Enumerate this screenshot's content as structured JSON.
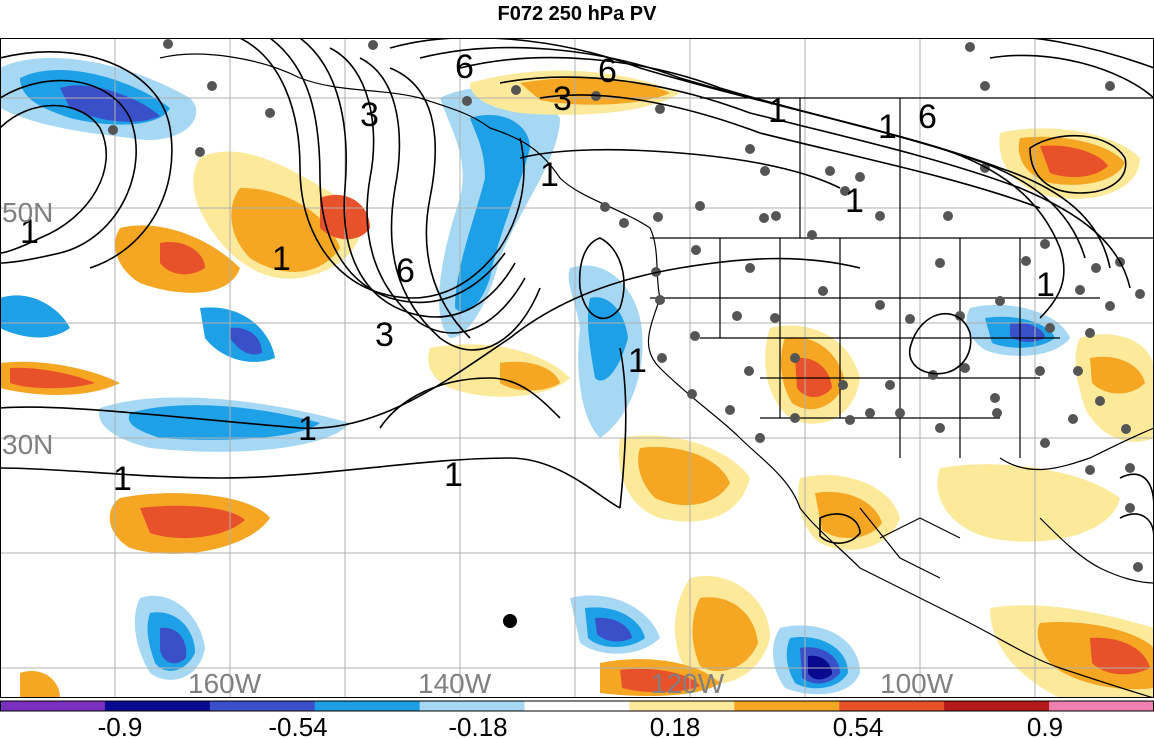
{
  "title": "F072 250 hPa PV",
  "map": {
    "lat_labels": [
      "50N",
      "30N"
    ],
    "lon_labels": [
      "160W",
      "140W",
      "120W",
      "100W"
    ],
    "contour_labels": [
      "3",
      "6",
      "6",
      "3",
      "1",
      "1",
      "6",
      "3",
      "6",
      "1",
      "1",
      "1",
      "1",
      "1",
      "1",
      "1",
      "1",
      "1"
    ],
    "colors": {
      "neg_0_9": "#7b2fbf",
      "neg_0_72": "#0a0a8f",
      "neg_0_54": "#3a50c8",
      "neg_0_36": "#1ea0e6",
      "neg_0_18": "#a6d8f4",
      "pos_0_18": "#fde99a",
      "pos_0_36": "#f5a623",
      "pos_0_54": "#e8522a",
      "pos_0_72": "#b31b1b",
      "pos_0_9": "#f080b0"
    }
  },
  "colorbar": {
    "labels": [
      "-0.9",
      "-0.54",
      "-0.18",
      "0.18",
      "0.54",
      "0.9"
    ],
    "colors": [
      "#7b2fbf",
      "#0a0a8f",
      "#3a50c8",
      "#1ea0e6",
      "#a6d8f4",
      "#ffffff",
      "#fde99a",
      "#f5a623",
      "#e8522a",
      "#b31b1b",
      "#f080b0"
    ]
  }
}
